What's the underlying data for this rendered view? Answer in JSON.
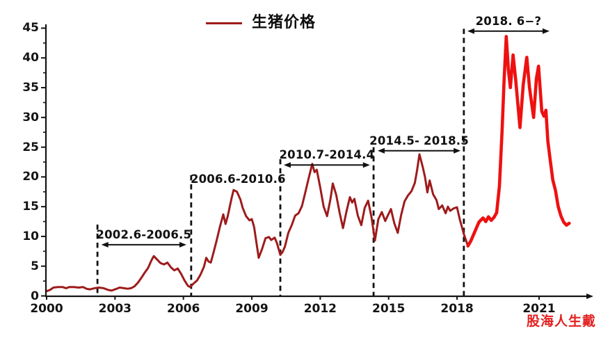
{
  "legend": {
    "label": "生猪价格"
  },
  "watermark": {
    "text": "股海人生戴",
    "color": "#e32020"
  },
  "chart_data": {
    "type": "line",
    "title": "",
    "series_name": "生猪价格",
    "xlabel": "",
    "ylabel": "",
    "x_ticks": [
      2000,
      2003,
      2006,
      2009,
      2012,
      2015,
      2018,
      2021
    ],
    "y_ticks": [
      0,
      5,
      10,
      15,
      20,
      25,
      30,
      35,
      40,
      45
    ],
    "y_minor_step": 2.5,
    "xlim": [
      2000,
      2022.3
    ],
    "ylim": [
      0,
      45
    ],
    "grid": false,
    "line_color": "#9e1b1b",
    "highlight_color": "#ee1111",
    "highlight_from_year": 2018.42,
    "axis_color": "#141414",
    "cycle_annotations": [
      {
        "label": "2002.6-2006.5",
        "from": 2002.4,
        "to": 2006.13,
        "arrow": true,
        "y_value": 8.6
      },
      {
        "label": "2006.6-2010.6",
        "from": 2006.7,
        "to": 2010.1,
        "arrow": false,
        "y_value": 19.5
      },
      {
        "label": "2010.7-2014.4",
        "from": 2010.4,
        "to": 2014.18,
        "arrow": true,
        "y_value": 22.0
      },
      {
        "label": "2014.5- 2018.5",
        "from": 2014.52,
        "to": 2018.13,
        "arrow": true,
        "y_value": 24.4
      },
      {
        "label": "2018. 6−?",
        "from": 2018.38,
        "to": 2021.38,
        "arrow": true,
        "y_value": 44.5
      }
    ],
    "dashed_lines": [
      {
        "year": 2002.23,
        "top_value": 12.0
      },
      {
        "year": 2006.34,
        "top_value": 20.3
      },
      {
        "year": 2010.25,
        "top_value": 23.0
      },
      {
        "year": 2014.34,
        "top_value": 25.0
      },
      {
        "year": 2018.25,
        "top_value": 44.9
      }
    ],
    "points": [
      [
        2000.0,
        0.8
      ],
      [
        2000.15,
        1.0
      ],
      [
        2000.3,
        1.4
      ],
      [
        2000.5,
        1.5
      ],
      [
        2000.7,
        1.5
      ],
      [
        2000.85,
        1.3
      ],
      [
        2001.0,
        1.5
      ],
      [
        2001.2,
        1.5
      ],
      [
        2001.4,
        1.4
      ],
      [
        2001.6,
        1.5
      ],
      [
        2001.75,
        1.2
      ],
      [
        2001.9,
        1.1
      ],
      [
        2002.1,
        1.3
      ],
      [
        2002.3,
        1.4
      ],
      [
        2002.5,
        1.3
      ],
      [
        2002.7,
        1.0
      ],
      [
        2002.85,
        0.9
      ],
      [
        2003.0,
        1.1
      ],
      [
        2003.2,
        1.4
      ],
      [
        2003.4,
        1.3
      ],
      [
        2003.55,
        1.2
      ],
      [
        2003.7,
        1.3
      ],
      [
        2003.85,
        1.6
      ],
      [
        2004.0,
        2.2
      ],
      [
        2004.15,
        3.0
      ],
      [
        2004.3,
        3.9
      ],
      [
        2004.45,
        4.7
      ],
      [
        2004.6,
        6.0
      ],
      [
        2004.7,
        6.7
      ],
      [
        2004.85,
        6.1
      ],
      [
        2005.0,
        5.5
      ],
      [
        2005.15,
        5.3
      ],
      [
        2005.3,
        5.6
      ],
      [
        2005.45,
        4.8
      ],
      [
        2005.6,
        4.3
      ],
      [
        2005.75,
        4.6
      ],
      [
        2005.9,
        3.7
      ],
      [
        2006.05,
        2.6
      ],
      [
        2006.2,
        1.7
      ],
      [
        2006.3,
        1.5
      ],
      [
        2006.45,
        2.1
      ],
      [
        2006.6,
        2.6
      ],
      [
        2006.75,
        3.6
      ],
      [
        2006.9,
        4.9
      ],
      [
        2007.0,
        6.4
      ],
      [
        2007.1,
        5.8
      ],
      [
        2007.2,
        5.6
      ],
      [
        2007.3,
        7.0
      ],
      [
        2007.45,
        9.2
      ],
      [
        2007.6,
        11.6
      ],
      [
        2007.75,
        13.7
      ],
      [
        2007.85,
        12.1
      ],
      [
        2007.95,
        13.5
      ],
      [
        2008.1,
        16.2
      ],
      [
        2008.2,
        17.8
      ],
      [
        2008.35,
        17.5
      ],
      [
        2008.5,
        16.2
      ],
      [
        2008.6,
        14.8
      ],
      [
        2008.75,
        13.4
      ],
      [
        2008.9,
        12.7
      ],
      [
        2009.0,
        12.9
      ],
      [
        2009.1,
        11.6
      ],
      [
        2009.2,
        9.0
      ],
      [
        2009.3,
        6.4
      ],
      [
        2009.45,
        7.9
      ],
      [
        2009.6,
        9.7
      ],
      [
        2009.75,
        9.9
      ],
      [
        2009.85,
        9.4
      ],
      [
        2010.0,
        9.8
      ],
      [
        2010.1,
        8.9
      ],
      [
        2010.25,
        6.9
      ],
      [
        2010.35,
        7.4
      ],
      [
        2010.45,
        8.3
      ],
      [
        2010.6,
        10.6
      ],
      [
        2010.75,
        11.9
      ],
      [
        2010.9,
        13.5
      ],
      [
        2011.05,
        13.9
      ],
      [
        2011.2,
        15.1
      ],
      [
        2011.35,
        17.5
      ],
      [
        2011.5,
        19.9
      ],
      [
        2011.65,
        22.2
      ],
      [
        2011.75,
        20.8
      ],
      [
        2011.85,
        21.2
      ],
      [
        2012.0,
        18.2
      ],
      [
        2012.15,
        15.0
      ],
      [
        2012.3,
        13.4
      ],
      [
        2012.45,
        16.3
      ],
      [
        2012.55,
        18.9
      ],
      [
        2012.7,
        17.0
      ],
      [
        2012.85,
        14.0
      ],
      [
        2013.0,
        11.4
      ],
      [
        2013.15,
        14.2
      ],
      [
        2013.3,
        16.6
      ],
      [
        2013.4,
        15.7
      ],
      [
        2013.5,
        16.3
      ],
      [
        2013.65,
        13.5
      ],
      [
        2013.8,
        11.9
      ],
      [
        2013.95,
        14.8
      ],
      [
        2014.1,
        16.0
      ],
      [
        2014.25,
        13.2
      ],
      [
        2014.4,
        9.3
      ],
      [
        2014.55,
        12.9
      ],
      [
        2014.7,
        14.1
      ],
      [
        2014.85,
        12.6
      ],
      [
        2015.0,
        13.8
      ],
      [
        2015.1,
        14.6
      ],
      [
        2015.25,
        12.2
      ],
      [
        2015.4,
        10.6
      ],
      [
        2015.55,
        13.6
      ],
      [
        2015.7,
        15.9
      ],
      [
        2015.85,
        16.9
      ],
      [
        2016.0,
        17.6
      ],
      [
        2016.15,
        19.0
      ],
      [
        2016.25,
        21.2
      ],
      [
        2016.35,
        23.8
      ],
      [
        2016.5,
        21.6
      ],
      [
        2016.6,
        19.9
      ],
      [
        2016.7,
        17.4
      ],
      [
        2016.8,
        19.4
      ],
      [
        2016.95,
        17.1
      ],
      [
        2017.1,
        16.1
      ],
      [
        2017.2,
        14.6
      ],
      [
        2017.35,
        15.2
      ],
      [
        2017.5,
        13.9
      ],
      [
        2017.6,
        15.0
      ],
      [
        2017.7,
        14.3
      ],
      [
        2017.85,
        14.7
      ],
      [
        2018.0,
        14.9
      ],
      [
        2018.1,
        12.9
      ],
      [
        2018.25,
        10.4
      ],
      [
        2018.4,
        8.4
      ],
      [
        2018.5,
        9.2
      ],
      [
        2018.65,
        10.8
      ],
      [
        2018.8,
        12.4
      ],
      [
        2018.95,
        13.1
      ],
      [
        2019.05,
        12.5
      ],
      [
        2019.15,
        13.3
      ],
      [
        2019.25,
        12.7
      ],
      [
        2019.35,
        13.2
      ],
      [
        2019.45,
        14.0
      ],
      [
        2019.55,
        18.5
      ],
      [
        2019.65,
        28.0
      ],
      [
        2019.72,
        36.0
      ],
      [
        2019.8,
        43.6
      ],
      [
        2019.88,
        38.0
      ],
      [
        2019.95,
        35.0
      ],
      [
        2020.05,
        40.5
      ],
      [
        2020.15,
        36.0
      ],
      [
        2020.3,
        28.3
      ],
      [
        2020.42,
        35.5
      ],
      [
        2020.55,
        40.1
      ],
      [
        2020.65,
        35.0
      ],
      [
        2020.8,
        30.0
      ],
      [
        2020.9,
        36.5
      ],
      [
        2020.98,
        38.6
      ],
      [
        2021.1,
        31.0
      ],
      [
        2021.18,
        30.2
      ],
      [
        2021.25,
        31.2
      ],
      [
        2021.32,
        26.0
      ],
      [
        2021.4,
        23.1
      ],
      [
        2021.5,
        19.5
      ],
      [
        2021.6,
        17.7
      ],
      [
        2021.7,
        15.0
      ],
      [
        2021.8,
        13.4
      ],
      [
        2021.9,
        12.4
      ],
      [
        2022.0,
        11.9
      ],
      [
        2022.1,
        12.2
      ]
    ]
  }
}
